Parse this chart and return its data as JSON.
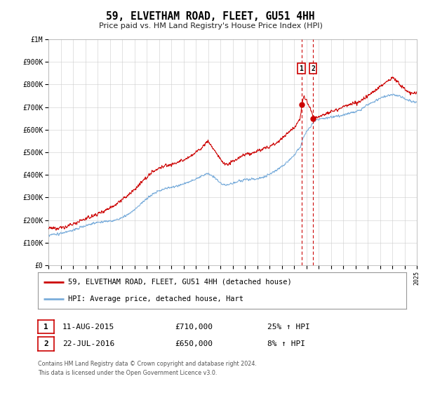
{
  "title": "59, ELVETHAM ROAD, FLEET, GU51 4HH",
  "subtitle": "Price paid vs. HM Land Registry's House Price Index (HPI)",
  "sale1_t": 2015.6,
  "sale1_price": 710000,
  "sale2_t": 2016.55,
  "sale2_price": 650000,
  "legend_line1": "59, ELVETHAM ROAD, FLEET, GU51 4HH (detached house)",
  "legend_line2": "HPI: Average price, detached house, Hart",
  "table_row1_date": "11-AUG-2015",
  "table_row1_price": "£710,000",
  "table_row1_pct": "25% ↑ HPI",
  "table_row2_date": "22-JUL-2016",
  "table_row2_price": "£650,000",
  "table_row2_pct": "8% ↑ HPI",
  "footer": "Contains HM Land Registry data © Crown copyright and database right 2024.\nThis data is licensed under the Open Government Licence v3.0.",
  "red_color": "#cc0000",
  "blue_color": "#7aaddb",
  "ylim_max": 1000000,
  "yticks": [
    0,
    100000,
    200000,
    300000,
    400000,
    500000,
    600000,
    700000,
    800000,
    900000,
    1000000
  ],
  "ytick_labels": [
    "£0",
    "£100K",
    "£200K",
    "£300K",
    "£400K",
    "£500K",
    "£600K",
    "£700K",
    "£800K",
    "£900K",
    "£1M"
  ],
  "xstart": 1995,
  "xend": 2025
}
